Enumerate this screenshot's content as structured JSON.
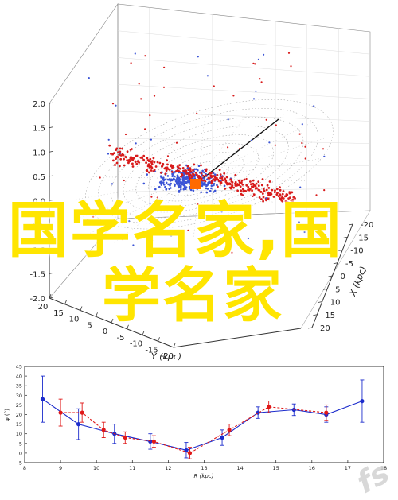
{
  "overlay": {
    "line1": "国学名家,国",
    "line2": "学名家"
  },
  "watermark": "fs",
  "chart_data": [
    {
      "type": "scatter",
      "title": "",
      "projection": "3d",
      "xlabel": "X (kpc)",
      "ylabel": "Y (kpc)",
      "zlabel": "",
      "xlim": [
        -20,
        20
      ],
      "ylim": [
        -20,
        20
      ],
      "zlim": [
        -2.0,
        2.0
      ],
      "x_ticks": [
        "20",
        "15",
        "10",
        "5",
        "0",
        "-5",
        "-10",
        "-15",
        "-20"
      ],
      "y_ticks": [
        "20",
        "15",
        "10",
        "5",
        "0",
        "-5",
        "-10",
        "-15",
        "-20"
      ],
      "z_ticks": [
        "2.0",
        "1.5",
        "1.0",
        "0.5",
        "0.0",
        "-0.5",
        "-1.0",
        "-1.5",
        "-2.0"
      ],
      "grid": true,
      "series": [],
      "colors": {
        "red": "#d81b1b",
        "blue": "#3b54d6",
        "sun": "#ff6a00"
      }
    },
    {
      "type": "line",
      "title": "",
      "xlabel": "R (kpc)",
      "ylabel": "φ (°)",
      "xlim": [
        8,
        18
      ],
      "ylim": [
        -5,
        45
      ],
      "x_ticks": [
        "8",
        "9",
        "10",
        "11",
        "12",
        "13",
        "14",
        "15",
        "16",
        "17",
        "18"
      ],
      "y_ticks": [
        "-5",
        "0",
        "5",
        "10",
        "15",
        "20",
        "25",
        "30",
        "35",
        "40",
        "45"
      ],
      "series": [
        {
          "color": "#1c2ccc",
          "style": "solid",
          "x": [
            8.5,
            9.5,
            10.5,
            11.5,
            12.5,
            13.5,
            14.5,
            15.5,
            16.4,
            17.4
          ],
          "y": [
            28,
            15,
            10,
            6,
            1.5,
            8,
            21,
            22.5,
            20,
            27
          ],
          "err": [
            12,
            8,
            5,
            4,
            4,
            4,
            3,
            3,
            4,
            11
          ]
        },
        {
          "color": "#e01818",
          "style": "dashed",
          "x": [
            9.0,
            9.6,
            10.2,
            10.8,
            11.6,
            12.6,
            13.7,
            14.8,
            16.4
          ],
          "y": [
            21,
            21,
            12,
            8,
            6,
            0,
            12,
            24,
            21
          ],
          "err": [
            7,
            5,
            4,
            3,
            3,
            3,
            3,
            3,
            4
          ]
        }
      ]
    }
  ]
}
